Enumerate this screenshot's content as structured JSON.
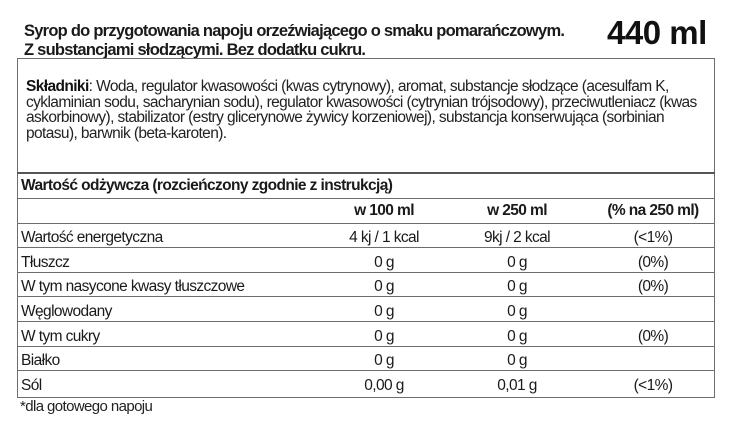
{
  "header": {
    "title_line1": "Syrop do przygotowania napoju orzeźwiającego o smaku pomarańczowym.",
    "title_line2": "Z substancjami słodzącymi. Bez dodatku cukru.",
    "volume": "440 ml"
  },
  "ingredients": {
    "label": "Składniki",
    "text": ": Woda, regulator kwasowości (kwas cytrynowy), aromat, substancje słodzące (acesulfam K, cyklaminian sodu, sacharynian sodu), regulator kwasowości (cytrynian trójsodowy), przeciwutleniacz (kwas askorbinowy), stabilizator (estry glicerynowe żywicy korzeniowej), substancja konserwująca (sorbinian potasu), barwnik (beta-karoten)."
  },
  "nutrition": {
    "title": "Wartość odżywcza (rozcieńczony zgodnie z instrukcją)",
    "columns": [
      "",
      "w 100 ml",
      "w 250 ml",
      "(% na 250 ml)"
    ],
    "rows": [
      [
        "Wartość energetyczna",
        "4 kj / 1 kcal",
        "9kj / 2 kcal",
        "(<1%)"
      ],
      [
        "Tłuszcz",
        "0 g",
        "0 g",
        "(0%)"
      ],
      [
        "W tym nasycone kwasy tłuszczowe",
        "0 g",
        "0 g",
        "(0%)"
      ],
      [
        "Węglowodany",
        "0 g",
        "0 g",
        ""
      ],
      [
        "W tym cukry",
        "0 g",
        "0 g",
        "(0%)"
      ],
      [
        "Białko",
        "0 g",
        "0 g",
        ""
      ],
      [
        "Sól",
        "0,00 g",
        "0,01 g",
        "(<1%)"
      ]
    ]
  },
  "footnote": "*dla gotowego napoju"
}
